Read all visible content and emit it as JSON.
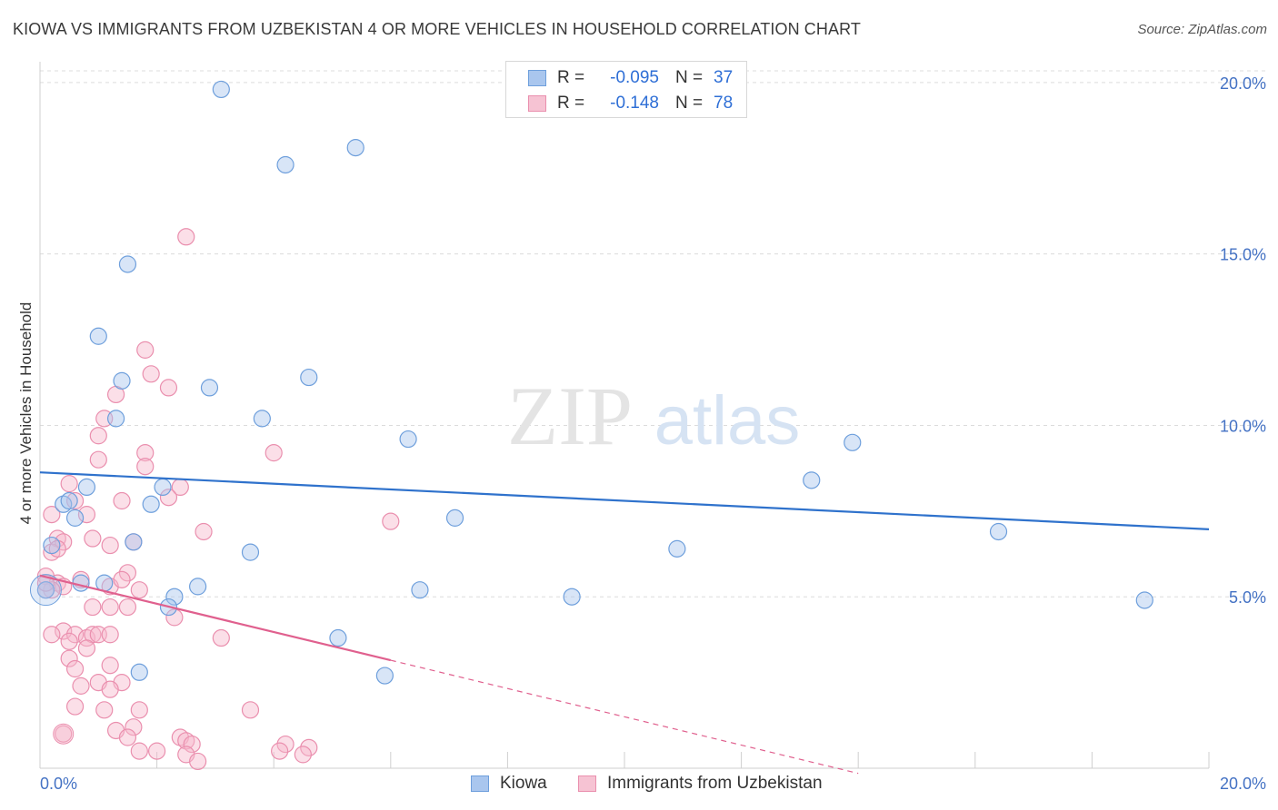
{
  "title": "KIOWA VS IMMIGRANTS FROM UZBEKISTAN 4 OR MORE VEHICLES IN HOUSEHOLD CORRELATION CHART",
  "source": "Source: ZipAtlas.com",
  "watermark": {
    "zip": "ZIP",
    "atlas": "atlas"
  },
  "legend": {
    "r_label": "R =",
    "n_label": "N =",
    "rows": [
      {
        "name": "Kiowa",
        "r": "-0.095",
        "n": "37"
      },
      {
        "name": "Immigrants from Uzbekistan",
        "r": "-0.148",
        "n": "78"
      }
    ]
  },
  "colors": {
    "kiowa_fill": "#a9c6ee",
    "kiowa_stroke": "#6e9fdc",
    "kiowa_line": "#2f72cc",
    "uzbek_fill": "#f6b7cb",
    "uzbek_stroke": "#ea8fae",
    "uzbek_line": "#e0608e",
    "tick_text": "#4472c4",
    "grid": "#dcdcdc"
  },
  "chart_data": {
    "type": "scatter",
    "ylabel": "4 or more Vehicles in Household",
    "xlabel": "",
    "x_tick_labels": [
      "0.0%",
      "20.0%"
    ],
    "y_tick_labels": [
      "5.0%",
      "10.0%",
      "15.0%",
      "20.0%"
    ],
    "xlim": [
      0,
      20
    ],
    "ylim": [
      0,
      20.5
    ],
    "y_ticks": [
      5,
      10,
      15,
      20
    ],
    "x_ticks": [
      0,
      2,
      4,
      6,
      8,
      10,
      12,
      14,
      16,
      18,
      20
    ],
    "grid": true,
    "legend_position": "top-center",
    "series": [
      {
        "name": "Kiowa",
        "points": [
          [
            3.1,
            19.8
          ],
          [
            5.4,
            18.1
          ],
          [
            4.2,
            17.6
          ],
          [
            1.5,
            14.7
          ],
          [
            1.0,
            12.6
          ],
          [
            1.4,
            11.3
          ],
          [
            2.9,
            11.1
          ],
          [
            4.6,
            11.4
          ],
          [
            3.8,
            10.2
          ],
          [
            1.3,
            10.2
          ],
          [
            6.3,
            9.6
          ],
          [
            13.9,
            9.5
          ],
          [
            13.2,
            8.4
          ],
          [
            0.8,
            8.2
          ],
          [
            2.1,
            8.2
          ],
          [
            0.4,
            7.7
          ],
          [
            0.5,
            7.8
          ],
          [
            1.9,
            7.7
          ],
          [
            0.6,
            7.3
          ],
          [
            7.1,
            7.3
          ],
          [
            16.4,
            6.9
          ],
          [
            1.6,
            6.6
          ],
          [
            0.2,
            6.5
          ],
          [
            10.9,
            6.4
          ],
          [
            3.6,
            6.3
          ],
          [
            1.1,
            5.4
          ],
          [
            0.7,
            5.4
          ],
          [
            2.7,
            5.3
          ],
          [
            6.5,
            5.2
          ],
          [
            0.1,
            5.2
          ],
          [
            9.1,
            5.0
          ],
          [
            2.3,
            5.0
          ],
          [
            18.9,
            4.9
          ],
          [
            2.2,
            4.7
          ],
          [
            5.1,
            3.8
          ],
          [
            1.7,
            2.8
          ],
          [
            5.9,
            2.7
          ]
        ],
        "trend": {
          "x": [
            0,
            20
          ],
          "y": [
            8.63,
            6.97
          ]
        }
      },
      {
        "name": "Immigrants from Uzbekistan",
        "points": [
          [
            2.5,
            15.5
          ],
          [
            1.8,
            12.2
          ],
          [
            1.9,
            11.5
          ],
          [
            2.2,
            11.1
          ],
          [
            1.3,
            10.9
          ],
          [
            1.1,
            10.2
          ],
          [
            1.0,
            9.7
          ],
          [
            1.8,
            9.2
          ],
          [
            4.0,
            9.2
          ],
          [
            1.0,
            9.0
          ],
          [
            1.8,
            8.8
          ],
          [
            0.5,
            8.3
          ],
          [
            2.4,
            8.2
          ],
          [
            0.6,
            7.8
          ],
          [
            1.4,
            7.8
          ],
          [
            2.2,
            7.9
          ],
          [
            0.2,
            7.4
          ],
          [
            0.8,
            7.4
          ],
          [
            6.0,
            7.2
          ],
          [
            2.8,
            6.9
          ],
          [
            0.3,
            6.7
          ],
          [
            0.9,
            6.7
          ],
          [
            0.4,
            6.6
          ],
          [
            0.2,
            6.3
          ],
          [
            1.6,
            6.6
          ],
          [
            1.2,
            6.5
          ],
          [
            0.3,
            6.4
          ],
          [
            1.5,
            5.7
          ],
          [
            0.1,
            5.6
          ],
          [
            1.7,
            5.2
          ],
          [
            0.3,
            5.4
          ],
          [
            0.4,
            5.3
          ],
          [
            0.7,
            5.5
          ],
          [
            1.2,
            5.3
          ],
          [
            1.4,
            5.5
          ],
          [
            0.2,
            5.2
          ],
          [
            0.1,
            5.2
          ],
          [
            0.1,
            5.4
          ],
          [
            0.9,
            4.7
          ],
          [
            1.2,
            4.7
          ],
          [
            1.5,
            4.7
          ],
          [
            2.3,
            4.4
          ],
          [
            0.4,
            4.0
          ],
          [
            0.2,
            3.9
          ],
          [
            0.6,
            3.9
          ],
          [
            0.8,
            3.8
          ],
          [
            0.9,
            3.9
          ],
          [
            1.0,
            3.9
          ],
          [
            1.2,
            3.9
          ],
          [
            0.5,
            3.7
          ],
          [
            3.1,
            3.8
          ],
          [
            0.8,
            3.5
          ],
          [
            0.5,
            3.2
          ],
          [
            1.2,
            3.0
          ],
          [
            0.6,
            2.9
          ],
          [
            1.0,
            2.5
          ],
          [
            1.4,
            2.5
          ],
          [
            0.7,
            2.4
          ],
          [
            1.2,
            2.3
          ],
          [
            0.6,
            1.8
          ],
          [
            1.1,
            1.7
          ],
          [
            1.7,
            1.7
          ],
          [
            3.6,
            1.7
          ],
          [
            0.4,
            1.0
          ],
          [
            1.3,
            1.1
          ],
          [
            1.6,
            1.2
          ],
          [
            1.5,
            0.9
          ],
          [
            2.4,
            0.9
          ],
          [
            2.5,
            0.8
          ],
          [
            2.6,
            0.7
          ],
          [
            4.2,
            0.7
          ],
          [
            4.6,
            0.6
          ],
          [
            1.7,
            0.5
          ],
          [
            2.0,
            0.5
          ],
          [
            2.5,
            0.4
          ],
          [
            4.1,
            0.5
          ],
          [
            4.5,
            0.4
          ],
          [
            2.7,
            0.2
          ]
        ],
        "trend": {
          "x": [
            0,
            6.0
          ],
          "y": [
            5.62,
            3.15
          ]
        },
        "trend_extension": {
          "x": [
            6.0,
            14.0
          ],
          "y": [
            3.15,
            -0.15
          ]
        }
      }
    ]
  }
}
